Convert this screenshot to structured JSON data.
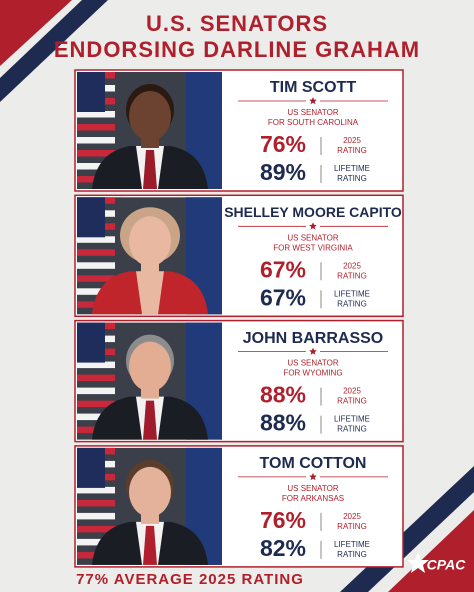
{
  "header": {
    "title_lines": [
      "U.S. SENATORS",
      "ENDORSING DARLINE GRAHAM"
    ]
  },
  "senators": [
    {
      "name": "TIM SCOTT",
      "role": [
        "US SENATOR",
        "FOR SOUTH CAROLINA"
      ],
      "ratings": [
        {
          "value": "76%",
          "label": [
            "2025",
            "RATING"
          ]
        },
        {
          "value": "89%",
          "label": [
            "LIFETIME",
            "RATING"
          ]
        }
      ]
    },
    {
      "name": "SHELLEY MOORE CAPITO",
      "role": [
        "US SENATOR",
        "FOR WEST VIRGINIA"
      ],
      "ratings": [
        {
          "value": "67%",
          "label": [
            "2025",
            "RATING"
          ]
        },
        {
          "value": "67%",
          "label": [
            "LIFETIME",
            "RATING"
          ]
        }
      ]
    },
    {
      "name": "JOHN BARRASSO",
      "role": [
        "US SENATOR",
        "FOR WYOMING"
      ],
      "ratings": [
        {
          "value": "88%",
          "label": [
            "2025",
            "RATING"
          ]
        },
        {
          "value": "88%",
          "label": [
            "LIFETIME",
            "RATING"
          ]
        }
      ]
    },
    {
      "name": "TOM COTTON",
      "role": [
        "US SENATOR",
        "FOR ARKANSAS"
      ],
      "ratings": [
        {
          "value": "76%",
          "label": [
            "2025",
            "RATING"
          ]
        },
        {
          "value": "82%",
          "label": [
            "LIFETIME",
            "RATING"
          ]
        }
      ]
    }
  ],
  "footer": "77% AVERAGE 2025 RATING",
  "logo": "CPAC"
}
